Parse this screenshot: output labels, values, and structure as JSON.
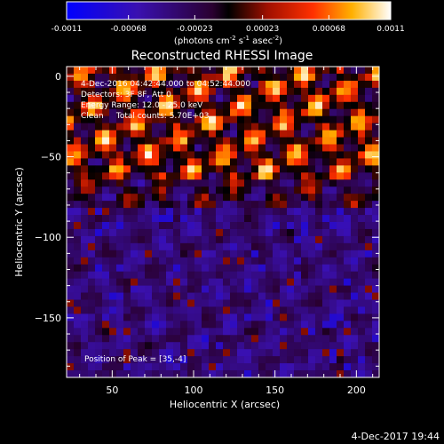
{
  "chart_data": {
    "type": "heatmap",
    "title": "Reconstructed RHESSI Image",
    "xlabel": "Heliocentric X (arcsec)",
    "ylabel": "Heliocentric Y (arcsec)",
    "xlim": [
      22,
      214
    ],
    "ylim": [
      -187,
      6
    ],
    "xticks": [
      50,
      100,
      150,
      200
    ],
    "yticks": [
      0,
      -50,
      -100,
      -150
    ],
    "colorbar": {
      "ticks": [
        "-0.0011",
        "-0.00068",
        "-0.00023",
        "0.00023",
        "0.00068",
        "0.0011"
      ],
      "tick_values": [
        -0.0011,
        -0.00068,
        -0.00023,
        0.00023,
        0.00068,
        0.0011
      ],
      "range": [
        -0.0011,
        0.0011
      ],
      "unit_label": "(photons cm",
      "unit_exp1": "-2",
      "unit_mid": " s",
      "unit_exp2": "-1",
      "unit_mid2": " asec",
      "unit_exp3": "-2",
      "unit_end": ")"
    },
    "annotations": [
      "4-Dec-2016 04:42:44.000 to 04:52:44.000",
      "Detectors: 3F 8F, Att 0",
      "Energy Range: 12.0 - 25.0 keV",
      "Clean     Total counts: 5.70E+03"
    ],
    "peak_label": "Position of Peak = [35,-4]",
    "peak_position": [
      35,
      -4
    ],
    "rows_description": "strong oscillating ring pattern in upper ~40% of field (y > -65), low/negative background below"
  },
  "footer": {
    "date": "4-Dec-2017 19:44"
  }
}
